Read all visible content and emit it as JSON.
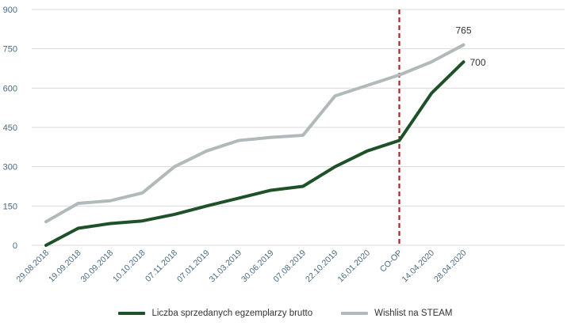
{
  "chart_data": {
    "type": "line",
    "categories": [
      "29.08.2018",
      "19.09.2018",
      "30.09.2018",
      "10.10.2018",
      "07.11.2018",
      "07.01.2019",
      "31.03.2019",
      "30.06.2019",
      "07.08.2019",
      "22.10.2019",
      "16.01.2020",
      "CO-OP",
      "14.04.2020",
      "28.04.2020"
    ],
    "series": [
      {
        "name": "Liczba sprzedanych egzemplarzy brutto",
        "color": "#1e5128",
        "values": [
          0,
          65,
          83,
          93,
          118,
          150,
          180,
          210,
          225,
          300,
          360,
          400,
          580,
          700
        ]
      },
      {
        "name": "Wishlist na STEAM",
        "color": "#b1b9bb",
        "values": [
          90,
          160,
          170,
          200,
          300,
          360,
          400,
          412,
          420,
          570,
          610,
          650,
          700,
          765
        ]
      }
    ],
    "data_labels": [
      {
        "series": 0,
        "index": 13,
        "text": "700"
      },
      {
        "series": 1,
        "index": 13,
        "text": "765"
      }
    ],
    "marker_line": {
      "category": "CO-OP",
      "color": "#b22222",
      "style": "dashed"
    },
    "yticks": [
      "0",
      "150",
      "300",
      "450",
      "600",
      "750",
      "900"
    ],
    "ylim": [
      0,
      900
    ],
    "grid": true,
    "legend_position": "bottom",
    "title": "",
    "xlabel": "",
    "ylabel": ""
  }
}
